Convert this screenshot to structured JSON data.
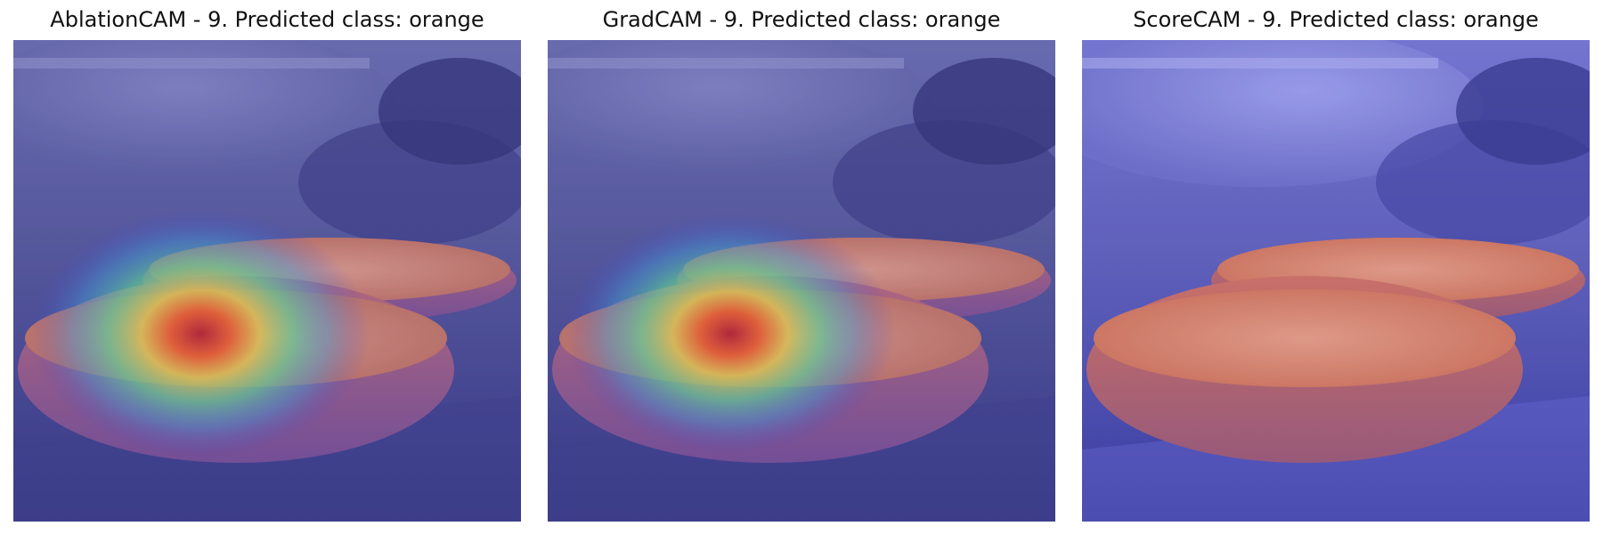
{
  "panels": [
    {
      "title": "AblationCAM - 9. Predicted class: orange",
      "heatmap": true
    },
    {
      "title": "GradCAM - 9. Predicted class: orange",
      "heatmap": true
    },
    {
      "title": "ScoreCAM - 9. Predicted class: orange",
      "heatmap": false
    }
  ],
  "colors": {
    "background": "#2f3170",
    "orange_flesh": "#e0875e",
    "overlay_tint": "#5a5ad0"
  }
}
